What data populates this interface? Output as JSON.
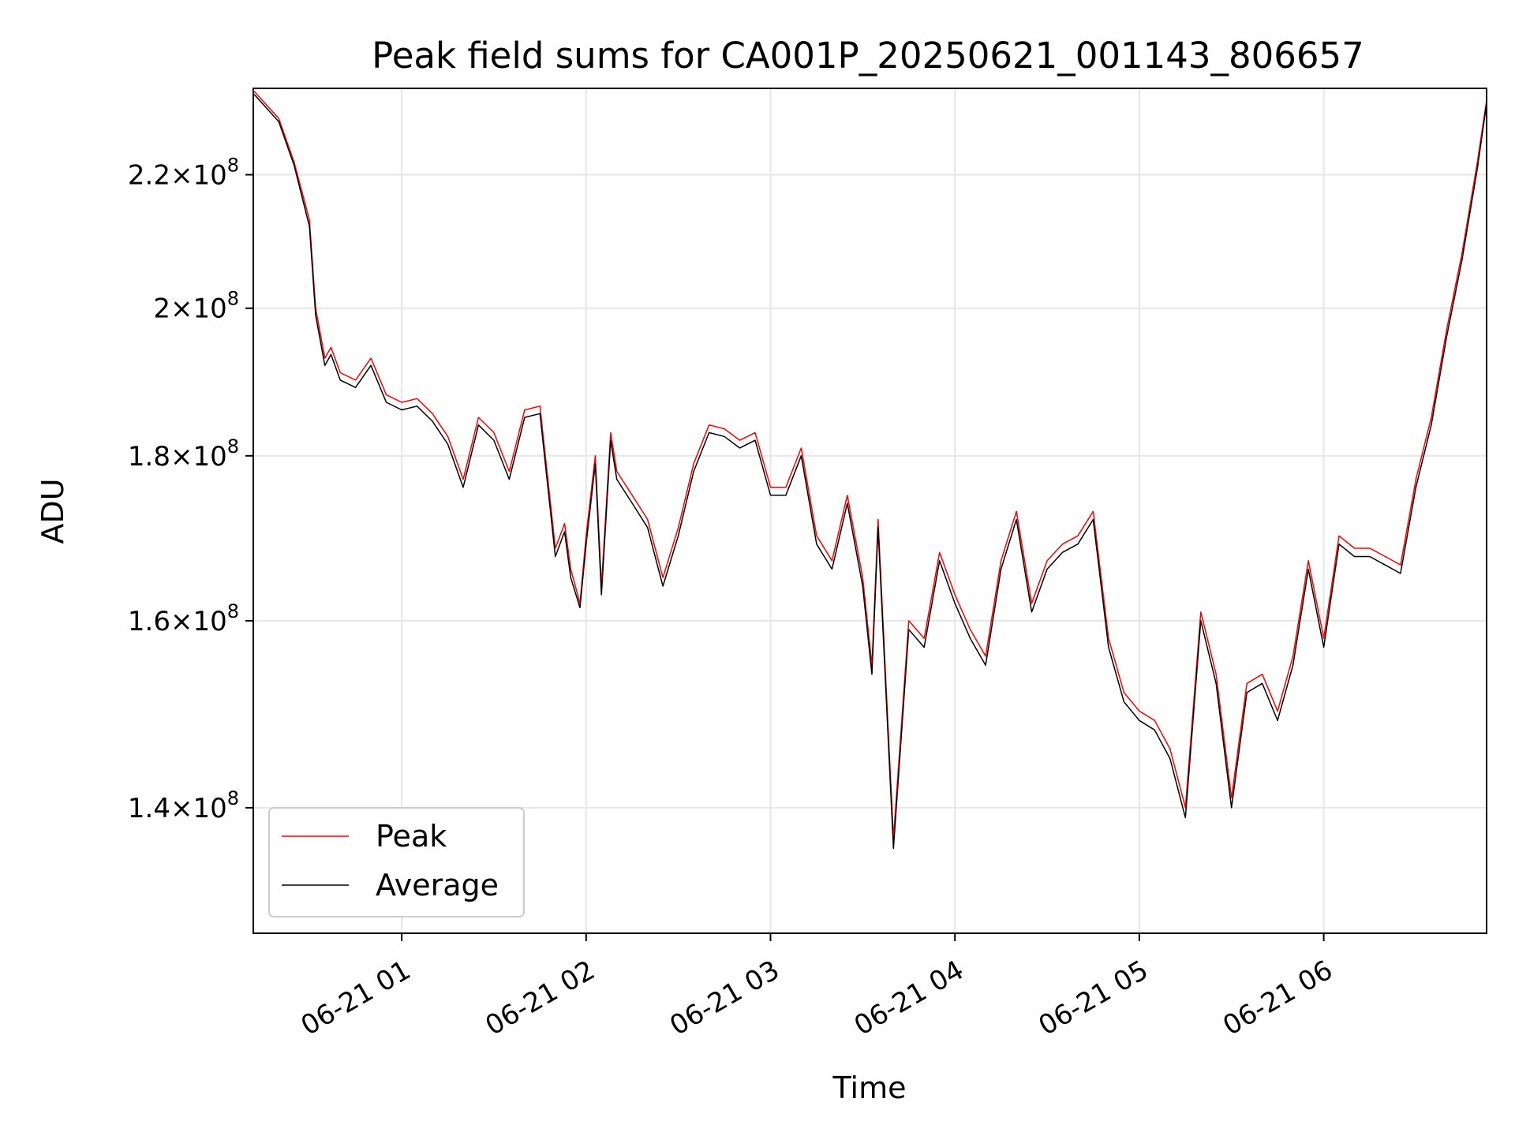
{
  "chart_data": {
    "type": "line",
    "title": "Peak field sums for CA001P_20250621_001143_806657",
    "xlabel": "Time",
    "ylabel": "ADU",
    "y_scale": "log",
    "ylim": [
      128000000,
      234000000
    ],
    "xlim": [
      "2025-06-21 00:11:43",
      "2025-06-21 06:53:00"
    ],
    "grid": true,
    "legend_position": "lower-left",
    "x_ticks": [
      {
        "t": "2025-06-21 01:00",
        "label": "06-21 01"
      },
      {
        "t": "2025-06-21 02:00",
        "label": "06-21 02"
      },
      {
        "t": "2025-06-21 03:00",
        "label": "06-21 03"
      },
      {
        "t": "2025-06-21 04:00",
        "label": "06-21 04"
      },
      {
        "t": "2025-06-21 05:00",
        "label": "06-21 05"
      },
      {
        "t": "2025-06-21 06:00",
        "label": "06-21 06"
      }
    ],
    "y_ticks": [
      {
        "value": 140000000,
        "mantissa": "1.4",
        "exponent": "8"
      },
      {
        "value": 160000000,
        "mantissa": "1.6",
        "exponent": "8"
      },
      {
        "value": 180000000,
        "mantissa": "1.8",
        "exponent": "8"
      },
      {
        "value": 200000000,
        "mantissa": "2",
        "exponent": "8"
      },
      {
        "value": 220000000,
        "mantissa": "2.2",
        "exponent": "8"
      }
    ],
    "series": [
      {
        "name": "Peak",
        "color": "#ff0000"
      },
      {
        "name": "Average",
        "color": "#000000"
      }
    ],
    "x": [
      "00:12",
      "00:20",
      "00:25",
      "00:30",
      "00:32",
      "00:35",
      "00:37",
      "00:40",
      "00:45",
      "00:50",
      "00:55",
      "01:00",
      "01:05",
      "01:10",
      "01:15",
      "01:20",
      "01:25",
      "01:30",
      "01:35",
      "01:40",
      "01:45",
      "01:50",
      "01:53",
      "01:55",
      "01:58",
      "02:00",
      "02:03",
      "02:05",
      "02:08",
      "02:10",
      "02:15",
      "02:20",
      "02:25",
      "02:30",
      "02:35",
      "02:40",
      "02:45",
      "02:50",
      "02:55",
      "03:00",
      "03:05",
      "03:10",
      "03:15",
      "03:20",
      "03:25",
      "03:30",
      "03:33",
      "03:35",
      "03:38",
      "03:40",
      "03:45",
      "03:50",
      "03:55",
      "04:00",
      "04:05",
      "04:10",
      "04:15",
      "04:20",
      "04:25",
      "04:30",
      "04:35",
      "04:40",
      "04:45",
      "04:50",
      "04:55",
      "05:00",
      "05:05",
      "05:10",
      "05:15",
      "05:20",
      "05:25",
      "05:30",
      "05:35",
      "05:40",
      "05:45",
      "05:50",
      "05:55",
      "06:00",
      "06:05",
      "06:10",
      "06:15",
      "06:20",
      "06:25",
      "06:30",
      "06:35",
      "06:40",
      "06:45",
      "06:50",
      "06:53"
    ],
    "peak": [
      233500000,
      229000000,
      222000000,
      213000000,
      200000000,
      193000000,
      194500000,
      191000000,
      190000000,
      193000000,
      188000000,
      187000000,
      187500000,
      185500000,
      182500000,
      177000000,
      185000000,
      183000000,
      178000000,
      186000000,
      186500000,
      168500000,
      171500000,
      166000000,
      162000000,
      170000000,
      180000000,
      164000000,
      183000000,
      178000000,
      175000000,
      172000000,
      165000000,
      171000000,
      179000000,
      184000000,
      183500000,
      182000000,
      183000000,
      176000000,
      176000000,
      181000000,
      170000000,
      167000000,
      175000000,
      165000000,
      155000000,
      172000000,
      150000000,
      137000000,
      160000000,
      158000000,
      168000000,
      163000000,
      159000000,
      156000000,
      167000000,
      173000000,
      162000000,
      167000000,
      169000000,
      170000000,
      173000000,
      158000000,
      152000000,
      150000000,
      149000000,
      146000000,
      140000000,
      161000000,
      154000000,
      141000000,
      153000000,
      154000000,
      150000000,
      156000000,
      167000000,
      158000000,
      170000000,
      168500000,
      168500000,
      167500000,
      166500000,
      177000000,
      185000000,
      197000000,
      208000000,
      222000000,
      232000000
    ],
    "average": [
      233000000,
      228500000,
      221500000,
      212000000,
      199000000,
      192000000,
      193500000,
      190000000,
      189000000,
      192000000,
      187000000,
      186000000,
      186500000,
      184500000,
      181500000,
      176000000,
      184000000,
      182000000,
      177000000,
      185000000,
      185500000,
      167500000,
      170500000,
      165000000,
      161500000,
      169000000,
      179000000,
      163000000,
      182000000,
      177000000,
      174000000,
      171000000,
      164000000,
      170000000,
      178000000,
      183000000,
      182500000,
      181000000,
      182000000,
      175000000,
      175000000,
      180000000,
      169000000,
      166000000,
      174000000,
      164000000,
      154000000,
      171000000,
      149000000,
      136000000,
      159000000,
      157000000,
      167000000,
      162000000,
      158000000,
      155000000,
      166000000,
      172000000,
      161000000,
      166000000,
      168000000,
      169000000,
      172000000,
      157000000,
      151000000,
      149000000,
      148000000,
      145000000,
      139000000,
      160000000,
      153000000,
      140000000,
      152000000,
      153000000,
      149000000,
      155000000,
      166000000,
      157000000,
      169000000,
      167500000,
      167500000,
      166500000,
      165500000,
      176000000,
      184000000,
      196000000,
      207000000,
      221000000,
      231500000
    ]
  }
}
